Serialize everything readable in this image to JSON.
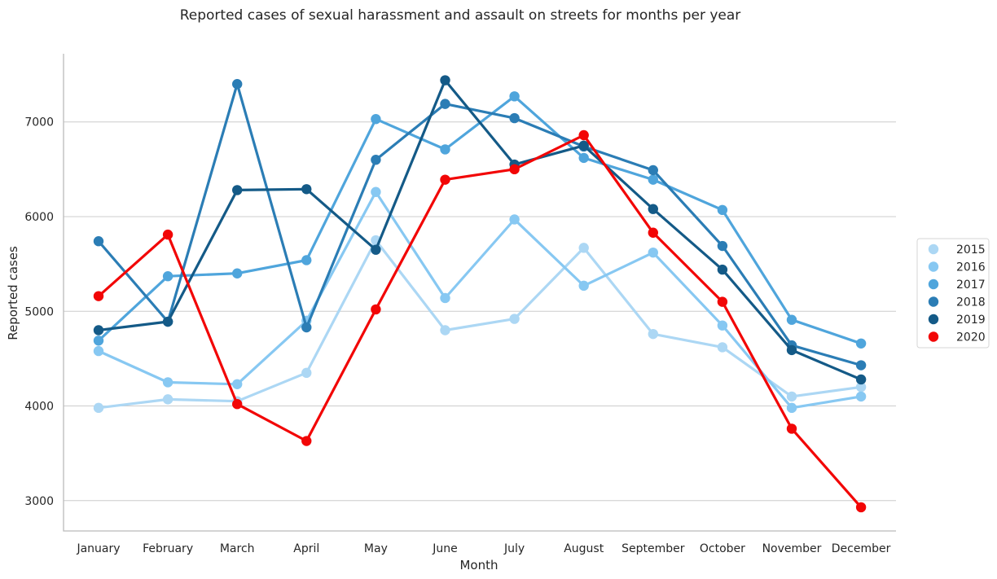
{
  "chart_data": {
    "type": "line",
    "title": "Reported cases of sexual harassment and assault on streets for months per year",
    "xlabel": "Month",
    "ylabel": "Reported cases",
    "categories": [
      "January",
      "February",
      "March",
      "April",
      "May",
      "June",
      "July",
      "August",
      "September",
      "October",
      "November",
      "December"
    ],
    "ylim": [
      2680,
      7720
    ],
    "yticks": [
      3000,
      4000,
      5000,
      6000,
      7000
    ],
    "grid": "horizontal",
    "legend_placement": "right",
    "series": [
      {
        "name": "2015",
        "color": "#acd7f4",
        "values": [
          3980,
          4070,
          4050,
          4350,
          5750,
          4800,
          4920,
          5670,
          4760,
          4620,
          4100,
          4200
        ]
      },
      {
        "name": "2016",
        "color": "#87c8f2",
        "values": [
          4580,
          4250,
          4230,
          4900,
          6260,
          5140,
          5970,
          5270,
          5620,
          4850,
          3980,
          4100
        ]
      },
      {
        "name": "2017",
        "color": "#4fa5dc",
        "values": [
          4690,
          5370,
          5400,
          5540,
          7030,
          6710,
          7270,
          6620,
          6390,
          6070,
          4910,
          4660
        ]
      },
      {
        "name": "2018",
        "color": "#2b7db5",
        "values": [
          5740,
          4890,
          7400,
          4830,
          6600,
          7190,
          7040,
          6740,
          6490,
          5690,
          4640,
          4430
        ]
      },
      {
        "name": "2019",
        "color": "#145a87",
        "values": [
          4800,
          4890,
          6280,
          6290,
          5650,
          7440,
          6550,
          6750,
          6080,
          5440,
          4590,
          4280
        ]
      },
      {
        "name": "2020",
        "color": "#f20606",
        "values": [
          5160,
          5810,
          4020,
          3630,
          5020,
          6390,
          6500,
          6860,
          5830,
          5100,
          3760,
          2930
        ]
      }
    ]
  }
}
